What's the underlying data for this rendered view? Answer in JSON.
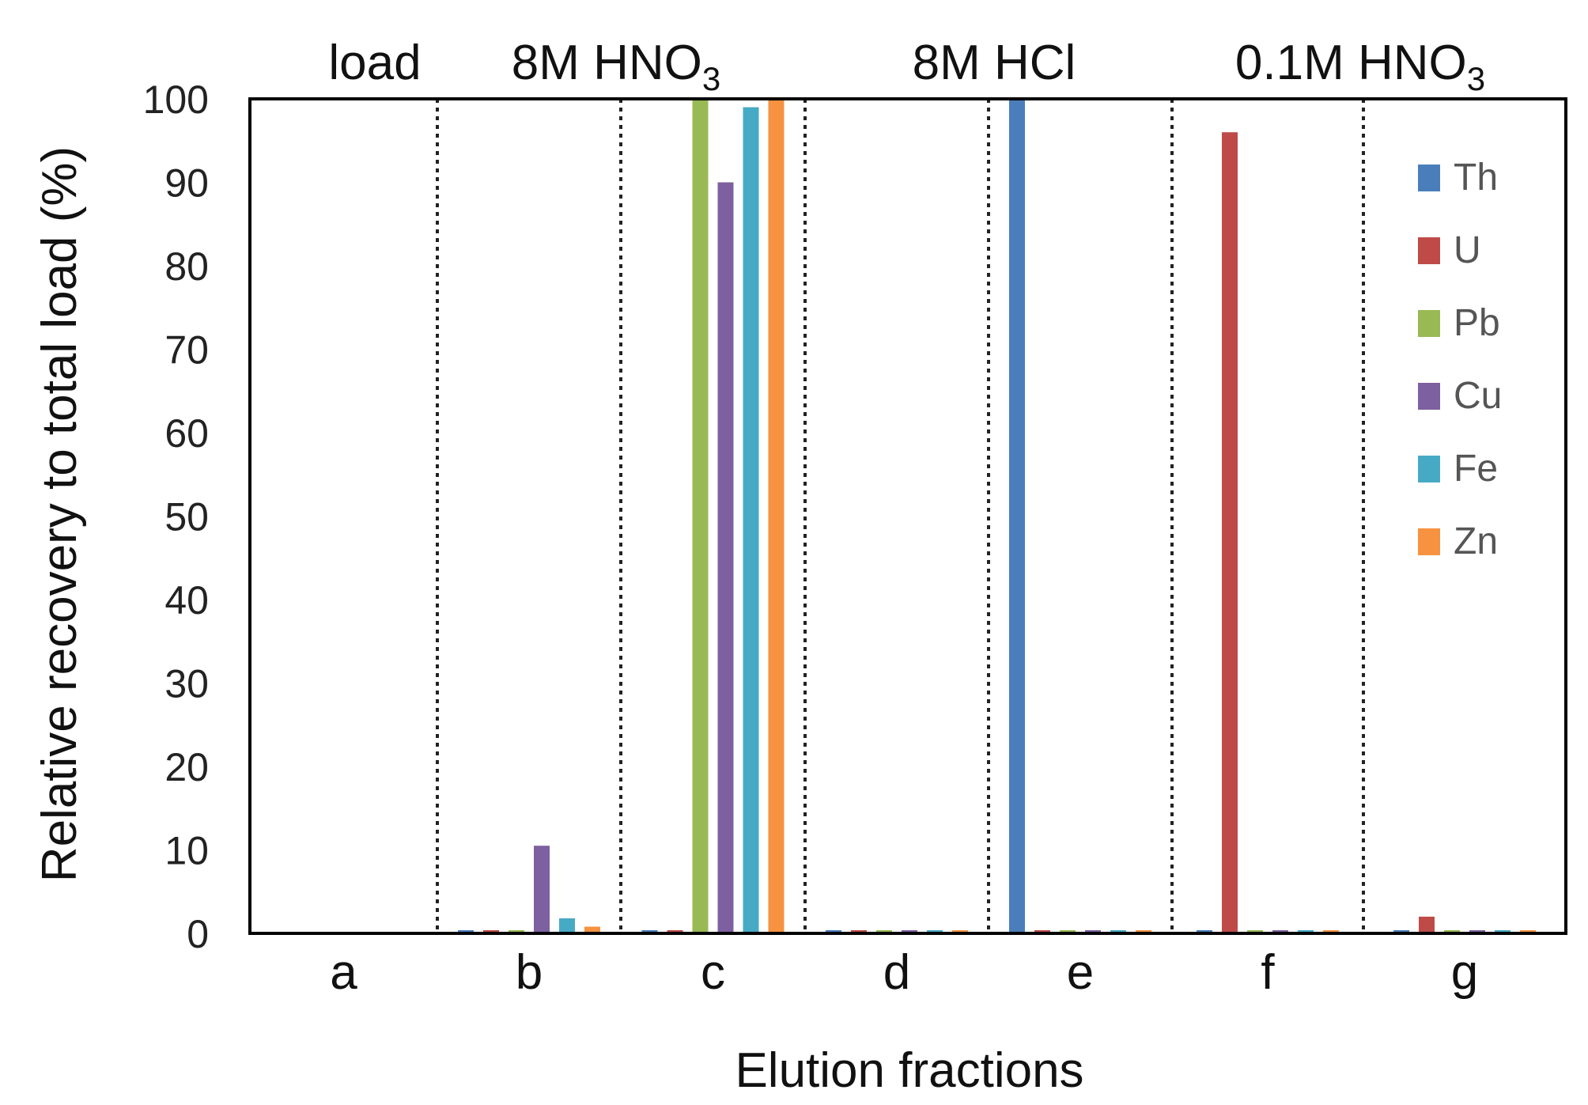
{
  "chart_data": {
    "type": "bar",
    "categories": [
      "a",
      "b",
      "c",
      "d",
      "e",
      "f",
      "g"
    ],
    "series": [
      {
        "name": "Th",
        "color": "#4a7ebb",
        "values": [
          0,
          0.3,
          0.3,
          0.3,
          100,
          0.3,
          0.3
        ]
      },
      {
        "name": "U",
        "color": "#be4b48",
        "values": [
          0,
          0.3,
          0.3,
          0.3,
          0.3,
          96,
          2
        ]
      },
      {
        "name": "Pb",
        "color": "#98b954",
        "values": [
          0,
          0.3,
          100,
          0.3,
          0.3,
          0.3,
          0.3
        ]
      },
      {
        "name": "Cu",
        "color": "#7d60a0",
        "values": [
          0,
          10.5,
          90,
          0.3,
          0.3,
          0.3,
          0.3
        ]
      },
      {
        "name": "Fe",
        "color": "#46aac5",
        "values": [
          0,
          1.8,
          99,
          0.3,
          0.3,
          0.3,
          0.3
        ]
      },
      {
        "name": "Zn",
        "color": "#f69240",
        "values": [
          0,
          0.8,
          100,
          0.3,
          0.3,
          0.3,
          0.3
        ]
      }
    ],
    "xlabel": "Elution fractions",
    "ylabel": "Relative recovery to total load (%)",
    "ylim": [
      0,
      100
    ],
    "yticks": [
      0,
      10,
      20,
      30,
      40,
      50,
      60,
      70,
      80,
      90,
      100
    ],
    "group_labels": [
      {
        "text": "load",
        "sub": ""
      },
      {
        "text": "8M HNO",
        "sub": "3"
      },
      {
        "text": "8M HCl",
        "sub": ""
      },
      {
        "text": "0.1M HNO",
        "sub": "3"
      }
    ],
    "legend_position": "top-right",
    "grid": false
  }
}
